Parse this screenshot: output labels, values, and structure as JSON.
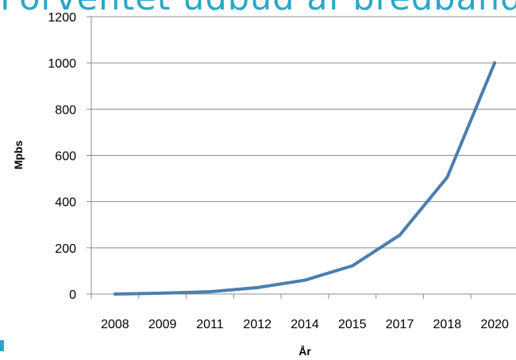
{
  "slide": {
    "title": "Forventet udbud af bredbånd",
    "accent_color": "#2aa7c9"
  },
  "chart_data": {
    "type": "line",
    "title": "",
    "xlabel": "År",
    "ylabel": "Mpbs",
    "categories": [
      "2008",
      "2009",
      "2011",
      "2012",
      "2014",
      "2015",
      "2017",
      "2018",
      "2020"
    ],
    "series": [
      {
        "values": [
          0,
          4,
          10,
          28,
          60,
          122,
          255,
          505,
          1000
        ],
        "color": "#4a7eb0"
      }
    ],
    "ylim": [
      0,
      1200
    ],
    "yticks": [
      0,
      200,
      400,
      600,
      800,
      1000,
      1200
    ],
    "grid": true,
    "legend": "none"
  }
}
